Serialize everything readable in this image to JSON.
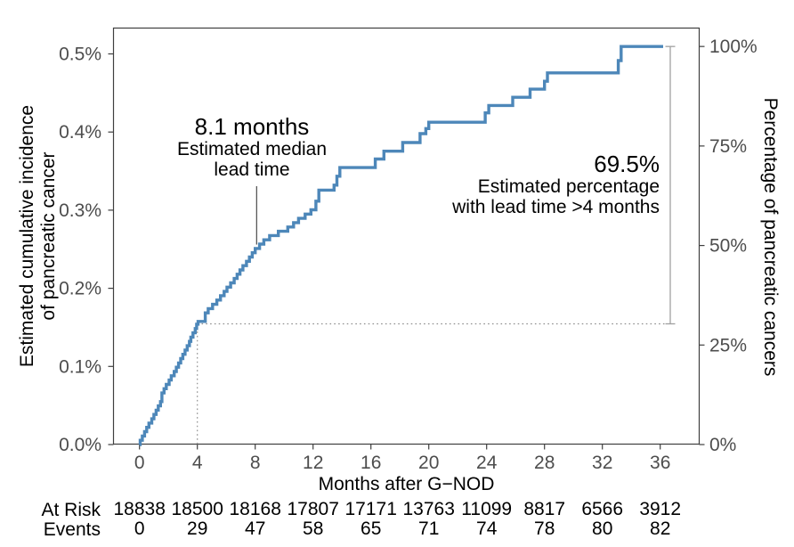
{
  "chart_data": {
    "type": "line",
    "subtype": "step-cumulative-incidence",
    "title": "",
    "xlabel": "Months after G−NOD",
    "ylabel_left_lines": [
      "Estimated cumulative incidence",
      "of pancreatic cancer"
    ],
    "ylabel_right": "Percentage of pancreatic cancers",
    "xlim": [
      -1.85,
      38.7
    ],
    "ylim_left_pct": [
      0,
      0.535
    ],
    "grid": "off",
    "legend": "none",
    "x_ticks": [
      0,
      4,
      8,
      12,
      16,
      20,
      24,
      28,
      32,
      36
    ],
    "x_tick_labels": [
      "0",
      "4",
      "8",
      "12",
      "16",
      "20",
      "24",
      "28",
      "32",
      "36"
    ],
    "y_ticks_left_pct": [
      0.0,
      0.1,
      0.2,
      0.3,
      0.4,
      0.5
    ],
    "y_tick_labels_left": [
      "0.0%",
      "0.1%",
      "0.2%",
      "0.3%",
      "0.4%",
      "0.5%"
    ],
    "y_ticks_right_percent_of_cancers": [
      0,
      25,
      50,
      75,
      100
    ],
    "y_tick_labels_right": [
      "0%",
      "25%",
      "50%",
      "75%",
      "100%"
    ],
    "final_cumulative_incidence_pct": 0.5095,
    "series": [
      {
        "name": "Estimated cumulative incidence of pancreatic cancer",
        "color": "#4d87b9",
        "step_points_month_pct": [
          [
            0,
            0
          ],
          [
            0.05,
            0.0055
          ],
          [
            0.2,
            0.011
          ],
          [
            0.35,
            0.0165
          ],
          [
            0.5,
            0.022
          ],
          [
            0.65,
            0.0275
          ],
          [
            0.85,
            0.033
          ],
          [
            1,
            0.0385
          ],
          [
            1.15,
            0.044
          ],
          [
            1.3,
            0.0495
          ],
          [
            1.45,
            0.055
          ],
          [
            1.55,
            0.066
          ],
          [
            1.7,
            0.0715
          ],
          [
            1.85,
            0.077
          ],
          [
            2.05,
            0.0825
          ],
          [
            2.2,
            0.088
          ],
          [
            2.4,
            0.0935
          ],
          [
            2.55,
            0.099
          ],
          [
            2.7,
            0.1045
          ],
          [
            2.85,
            0.11
          ],
          [
            3,
            0.1155
          ],
          [
            3.15,
            0.121
          ],
          [
            3.3,
            0.1265
          ],
          [
            3.45,
            0.132
          ],
          [
            3.55,
            0.1375
          ],
          [
            3.7,
            0.143
          ],
          [
            3.85,
            0.1485
          ],
          [
            3.95,
            0.154
          ],
          [
            4.05,
            0.1576
          ],
          [
            4.55,
            0.1685
          ],
          [
            4.75,
            0.174
          ],
          [
            5.05,
            0.1795
          ],
          [
            5.35,
            0.185
          ],
          [
            5.6,
            0.1905
          ],
          [
            5.85,
            0.196
          ],
          [
            6.05,
            0.2015
          ],
          [
            6.3,
            0.207
          ],
          [
            6.55,
            0.2125
          ],
          [
            6.75,
            0.218
          ],
          [
            6.95,
            0.2235
          ],
          [
            7.15,
            0.229
          ],
          [
            7.4,
            0.2345
          ],
          [
            7.6,
            0.24
          ],
          [
            7.8,
            0.2455
          ],
          [
            8,
            0.251
          ],
          [
            8.3,
            0.2565
          ],
          [
            8.6,
            0.262
          ],
          [
            9,
            0.2675
          ],
          [
            9.6,
            0.273
          ],
          [
            10.25,
            0.2785
          ],
          [
            10.65,
            0.284
          ],
          [
            11,
            0.2895
          ],
          [
            11.45,
            0.295
          ],
          [
            11.85,
            0.3005
          ],
          [
            12.2,
            0.3115
          ],
          [
            12.4,
            0.3256
          ],
          [
            13.45,
            0.332
          ],
          [
            13.65,
            0.3435
          ],
          [
            13.85,
            0.3545
          ],
          [
            16.3,
            0.3655
          ],
          [
            16.9,
            0.3755
          ],
          [
            18.2,
            0.3865
          ],
          [
            19.4,
            0.398
          ],
          [
            19.8,
            0.4045
          ],
          [
            20,
            0.4125
          ],
          [
            23.9,
            0.4245
          ],
          [
            24.15,
            0.434
          ],
          [
            25.8,
            0.4445
          ],
          [
            27,
            0.4548
          ],
          [
            28,
            0.465
          ],
          [
            28.2,
            0.4757
          ],
          [
            33.1,
            0.4915
          ],
          [
            33.3,
            0.5095
          ],
          [
            36.2,
            0.5095
          ]
        ]
      }
    ],
    "reference": {
      "lead_time_threshold_months": 4,
      "incidence_at_4_months_pct": 0.1545,
      "median_months": 8.1,
      "median_incidence_pct": 0.2548
    },
    "at_risk_table": {
      "row_labels": [
        "At Risk",
        "Events"
      ],
      "times_months": [
        0,
        4,
        8,
        12,
        16,
        20,
        24,
        28,
        32,
        36
      ],
      "at_risk": [
        18838,
        18500,
        18168,
        17807,
        17171,
        13763,
        11099,
        8817,
        6566,
        3912
      ],
      "events": [
        0,
        29,
        47,
        58,
        65,
        71,
        74,
        78,
        80,
        82
      ]
    }
  },
  "annotations": {
    "median": {
      "value": "8.1 months",
      "line1": "Estimated median",
      "line2": "lead time"
    },
    "lead_time": {
      "value": "69.5%",
      "line1": "Estimated percentage",
      "line2": "with lead time >4 months"
    }
  },
  "colors": {
    "curve": "#4d87b9",
    "axis_text": "#4d4d4d",
    "axis_line": "#3f3f3f",
    "annotation_text": "#000000",
    "dotted_line": "#8f8f8f",
    "measure_line": "#a0a0a0",
    "median_line": "#4a4a4a",
    "table_text": "#000000"
  }
}
